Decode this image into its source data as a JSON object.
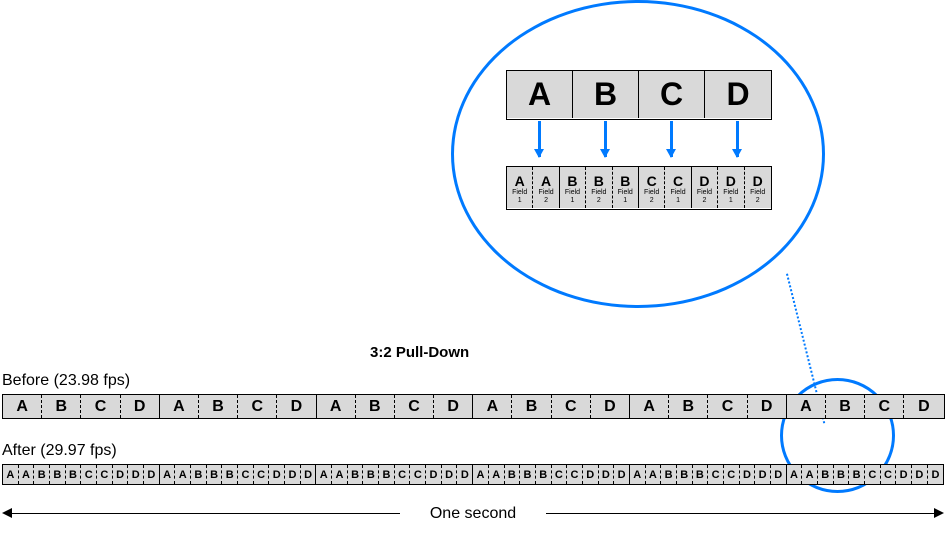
{
  "title": "3:2 Pull-Down",
  "before": {
    "label": "Before (23.98 fps)",
    "frames": [
      "A",
      "B",
      "C",
      "D",
      "A",
      "B",
      "C",
      "D",
      "A",
      "B",
      "C",
      "D",
      "A",
      "B",
      "C",
      "D",
      "A",
      "B",
      "C",
      "D",
      "A",
      "B",
      "C",
      "D"
    ]
  },
  "after": {
    "label": "After (29.97 fps)",
    "fields": [
      "A",
      "A",
      "B",
      "B",
      "B",
      "C",
      "C",
      "D",
      "D",
      "D",
      "A",
      "A",
      "B",
      "B",
      "B",
      "C",
      "C",
      "D",
      "D",
      "D",
      "A",
      "A",
      "B",
      "B",
      "B",
      "C",
      "C",
      "D",
      "D",
      "D",
      "A",
      "A",
      "B",
      "B",
      "B",
      "C",
      "C",
      "D",
      "D",
      "D",
      "A",
      "A",
      "B",
      "B",
      "B",
      "C",
      "C",
      "D",
      "D",
      "D",
      "A",
      "A",
      "B",
      "B",
      "B",
      "C",
      "C",
      "D",
      "D",
      "D"
    ]
  },
  "bracket_label": "One second",
  "magnifier": {
    "top_frames": [
      "A",
      "B",
      "C",
      "D"
    ],
    "bottom_fields": [
      {
        "l": "A",
        "f": "1"
      },
      {
        "l": "A",
        "f": "2"
      },
      {
        "l": "B",
        "f": "1"
      },
      {
        "l": "B",
        "f": "2"
      },
      {
        "l": "B",
        "f": "1"
      },
      {
        "l": "C",
        "f": "2"
      },
      {
        "l": "C",
        "f": "1"
      },
      {
        "l": "D",
        "f": "2"
      },
      {
        "l": "D",
        "f": "1"
      },
      {
        "l": "D",
        "f": "2"
      }
    ],
    "field_label": "Field"
  },
  "colors": {
    "cell_bg": "#d9d9d9",
    "accent": "#007aff",
    "border": "#000000",
    "background": "#ffffff"
  },
  "layout": {
    "before_group_size": 4,
    "after_group_size": 10,
    "mag_bottom_group_ends": [
      1,
      4,
      6,
      9
    ]
  }
}
